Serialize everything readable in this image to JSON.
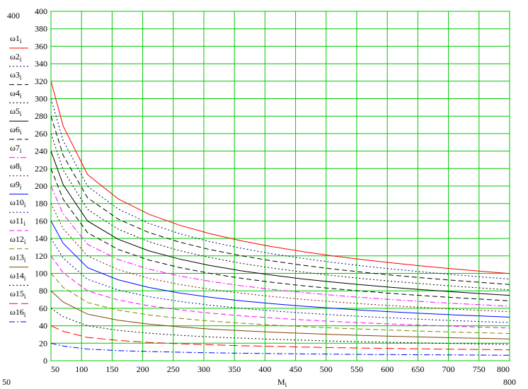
{
  "chart_data": {
    "type": "line",
    "xlabel": "M",
    "xlabel_sub": "i",
    "x_axis_corner_labels": {
      "left": "50",
      "right": "800"
    },
    "y_axis_corner_label": "400",
    "xlim": [
      50,
      800
    ],
    "ylim": [
      0,
      400
    ],
    "x_ticks": [
      50,
      100,
      150,
      200,
      250,
      300,
      350,
      400,
      450,
      500,
      550,
      600,
      650,
      700,
      750,
      800
    ],
    "y_ticks": [
      0,
      20,
      40,
      60,
      80,
      100,
      120,
      140,
      160,
      180,
      200,
      220,
      240,
      260,
      280,
      300,
      320,
      340,
      360,
      380,
      400
    ],
    "grid": true,
    "grid_color": "#00c800",
    "legend_position": "left",
    "x": [
      50,
      70,
      110,
      160,
      210,
      260,
      310,
      360,
      410,
      460,
      510,
      560,
      610,
      660,
      710,
      760,
      800
    ],
    "series": [
      {
        "name": "ω1",
        "sub": "i",
        "color": "#ff0000",
        "dash": "solid",
        "values": [
          320.0,
          268.6,
          213.0,
          185.3,
          167.8,
          155.2,
          145.4,
          137.5,
          130.8,
          125.1,
          120.1,
          115.7,
          111.8,
          108.2,
          105.0,
          102.0,
          99.8
        ]
      },
      {
        "name": "ω2",
        "sub": "i",
        "color": "#000080",
        "dash": "dot",
        "values": [
          300.0,
          251.8,
          199.7,
          173.7,
          157.3,
          145.5,
          136.3,
          128.9,
          122.6,
          117.3,
          112.6,
          108.5,
          104.8,
          101.5,
          98.4,
          95.6,
          93.5
        ]
      },
      {
        "name": "ω3",
        "sub": "i",
        "color": "#000000",
        "dash": "dash",
        "values": [
          280.0,
          235.0,
          186.4,
          162.1,
          146.8,
          135.8,
          127.2,
          120.3,
          114.4,
          109.5,
          105.1,
          101.3,
          97.8,
          94.7,
          91.9,
          89.3,
          87.3
        ]
      },
      {
        "name": "ω4",
        "sub": "i",
        "color": "#000000",
        "dash": "dot",
        "values": [
          260.0,
          218.2,
          173.1,
          150.5,
          136.3,
          126.1,
          118.1,
          111.7,
          106.2,
          101.7,
          97.6,
          94.0,
          90.8,
          88.0,
          85.3,
          82.9,
          81.1
        ]
      },
      {
        "name": "ω5",
        "sub": "i",
        "color": "#000000",
        "dash": "solid",
        "values": [
          240.0,
          201.4,
          159.8,
          139.0,
          125.8,
          116.4,
          109.0,
          103.1,
          98.1,
          93.8,
          90.1,
          86.8,
          83.8,
          81.2,
          78.8,
          76.5,
          74.8
        ]
      },
      {
        "name": "ω6",
        "sub": "i",
        "color": "#000000",
        "dash": "dash",
        "values": [
          220.0,
          184.7,
          146.5,
          127.4,
          115.3,
          106.7,
          100.0,
          94.5,
          89.9,
          86.0,
          82.6,
          79.6,
          76.9,
          74.4,
          72.2,
          70.2,
          68.6
        ]
      },
      {
        "name": "ω7",
        "sub": "i",
        "color": "#ff00ff",
        "dash": "dashdot",
        "values": [
          200.0,
          167.9,
          133.2,
          115.8,
          104.9,
          97.0,
          90.9,
          85.9,
          81.8,
          78.2,
          75.1,
          72.3,
          69.9,
          67.6,
          65.6,
          63.8,
          62.4
        ]
      },
      {
        "name": "ω8",
        "sub": "i",
        "color": "#800000",
        "dash": "dot",
        "values": [
          180.0,
          151.1,
          119.9,
          104.2,
          94.4,
          87.3,
          81.8,
          77.3,
          73.6,
          70.4,
          67.6,
          65.1,
          62.9,
          60.9,
          59.0,
          57.4,
          56.1
        ]
      },
      {
        "name": "ω9",
        "sub": "i",
        "color": "#0000ff",
        "dash": "solid",
        "values": [
          160.0,
          134.3,
          106.5,
          92.6,
          83.9,
          77.6,
          72.7,
          68.7,
          65.4,
          62.6,
          60.1,
          57.8,
          55.9,
          54.1,
          52.5,
          51.0,
          49.9
        ]
      },
      {
        "name": "ω10",
        "sub": "i",
        "color": "#000080",
        "dash": "dot",
        "values": [
          140.0,
          117.5,
          93.2,
          81.0,
          73.4,
          67.9,
          63.6,
          60.1,
          57.2,
          54.7,
          52.6,
          50.6,
          48.9,
          47.3,
          45.9,
          44.6,
          43.7
        ]
      },
      {
        "name": "ω11",
        "sub": "i",
        "color": "#ff00ff",
        "dash": "dash",
        "values": [
          120.0,
          100.7,
          79.9,
          69.5,
          62.9,
          58.2,
          54.5,
          51.5,
          49.1,
          46.9,
          45.0,
          43.4,
          41.9,
          40.6,
          39.4,
          38.3,
          37.4
        ]
      },
      {
        "name": "ω12",
        "sub": "i",
        "color": "#808000",
        "dash": "dash",
        "values": [
          100.0,
          83.9,
          66.6,
          57.9,
          52.4,
          48.5,
          45.4,
          43.0,
          40.9,
          39.1,
          37.5,
          36.2,
          34.9,
          33.8,
          32.8,
          31.9,
          31.2
        ]
      },
      {
        "name": "ω13",
        "sub": "i",
        "color": "#804000",
        "dash": "solid",
        "values": [
          80.0,
          67.1,
          53.3,
          46.3,
          41.9,
          38.8,
          36.3,
          34.4,
          32.7,
          31.3,
          30.0,
          28.9,
          27.9,
          27.1,
          26.2,
          25.5,
          24.9
        ]
      },
      {
        "name": "ω14",
        "sub": "i",
        "color": "#000000",
        "dash": "dot",
        "values": [
          60.0,
          50.4,
          40.0,
          34.7,
          31.5,
          29.1,
          27.3,
          25.8,
          24.5,
          23.5,
          22.5,
          21.7,
          21.0,
          20.3,
          19.7,
          19.1,
          18.7
        ]
      },
      {
        "name": "ω15",
        "sub": "i",
        "color": "#ff0000",
        "dash": "longdash",
        "values": [
          40.0,
          33.6,
          26.6,
          23.2,
          21.0,
          19.4,
          18.2,
          17.2,
          16.4,
          15.6,
          15.0,
          14.5,
          14.0,
          13.5,
          13.1,
          12.8,
          12.5
        ]
      },
      {
        "name": "ω16",
        "sub": "i",
        "color": "#0000ff",
        "dash": "dashdot",
        "values": [
          20.0,
          16.8,
          13.3,
          11.6,
          10.5,
          9.7,
          9.1,
          8.6,
          8.2,
          7.8,
          7.5,
          7.2,
          7.0,
          6.8,
          6.6,
          6.4,
          6.2
        ]
      }
    ]
  }
}
